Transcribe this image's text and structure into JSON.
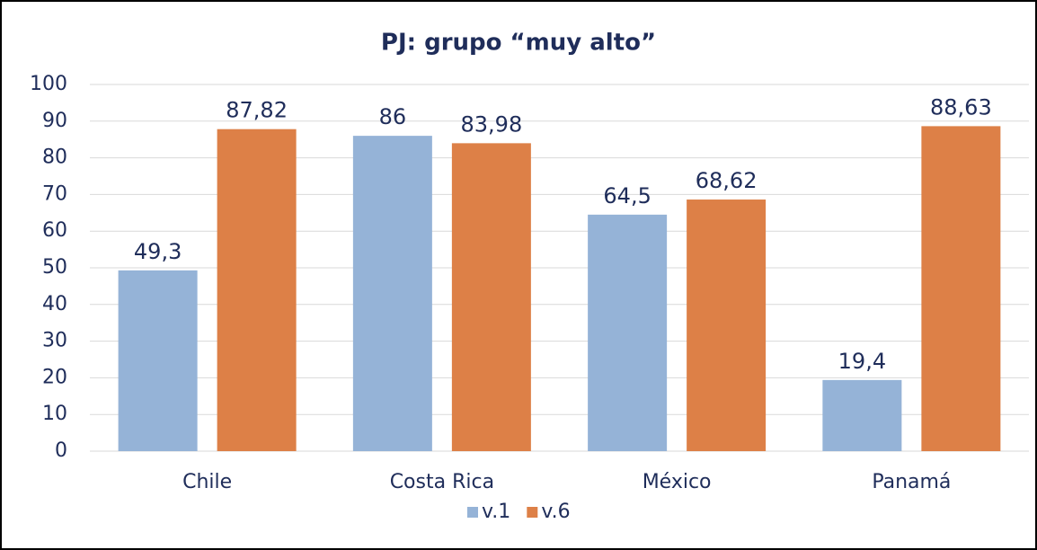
{
  "chart_data": {
    "type": "bar",
    "title": "PJ: grupo “muy alto”",
    "categories": [
      "Chile",
      "Costa Rica",
      "México",
      "Panamá"
    ],
    "series": [
      {
        "name": "v.1",
        "color": "#95b3d7",
        "values": [
          49.3,
          86,
          64.5,
          19.4
        ],
        "value_labels": [
          "49,3",
          "86",
          "64,5",
          "19,4"
        ]
      },
      {
        "name": "v.6",
        "color": "#dd8047",
        "values": [
          87.82,
          83.98,
          68.62,
          88.63
        ],
        "value_labels": [
          "87,82",
          "83,98",
          "68,62",
          "88,63"
        ]
      }
    ],
    "ylim": [
      0,
      100
    ],
    "yticks": [
      0,
      10,
      20,
      30,
      40,
      50,
      60,
      70,
      80,
      90,
      100
    ],
    "grid": true,
    "legend": "bottom"
  }
}
